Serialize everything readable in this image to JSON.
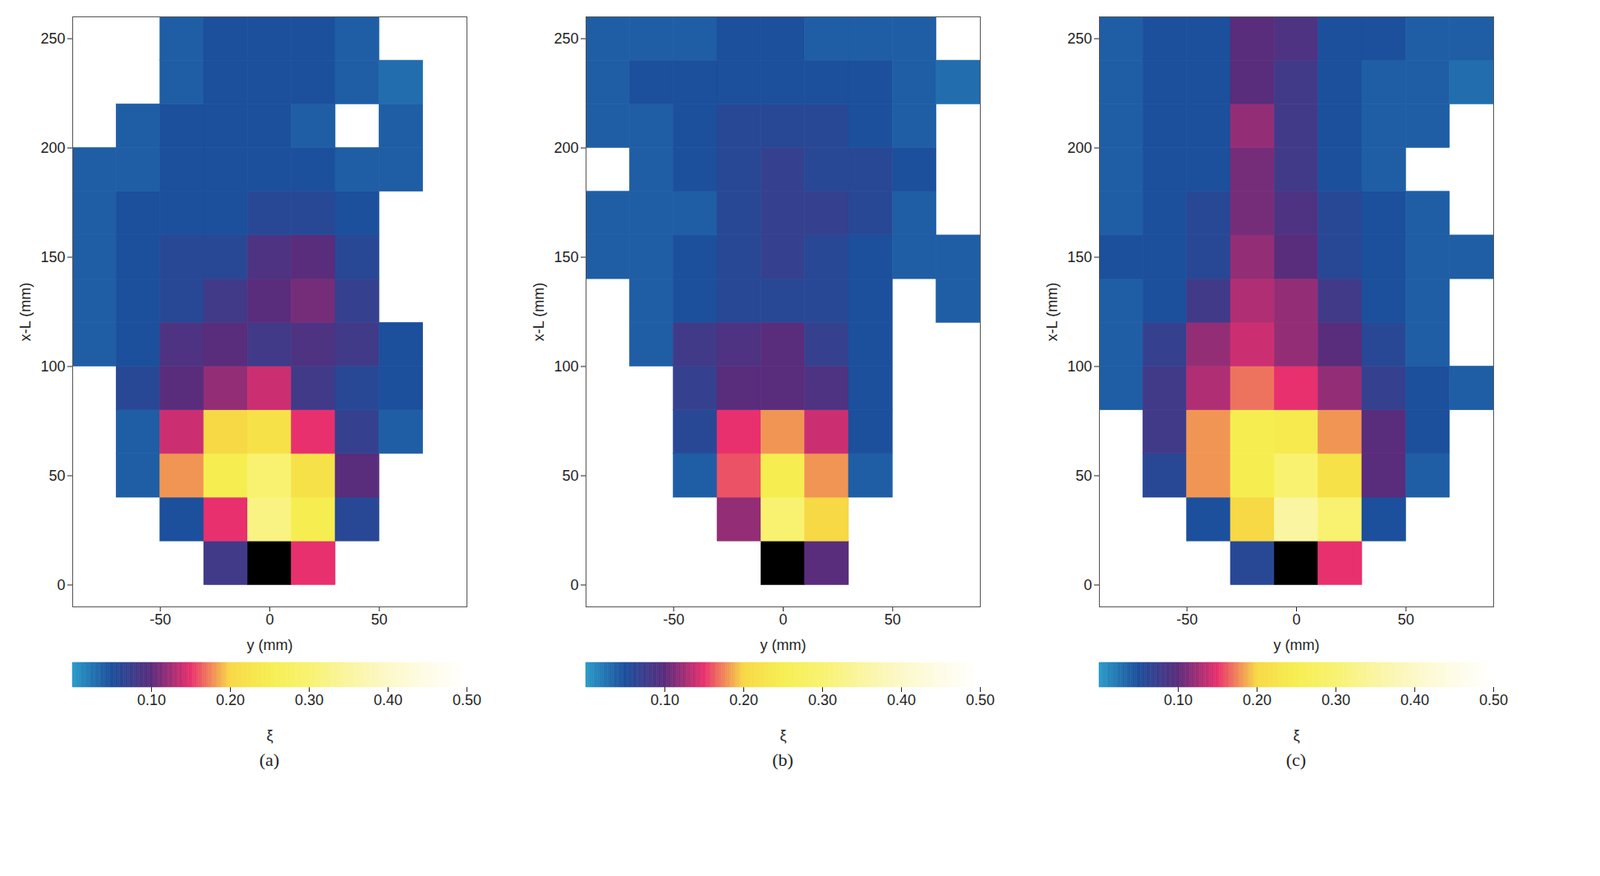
{
  "chart_data": [
    {
      "type": "heatmap",
      "panel": "(a)",
      "xlabel": "y (mm)",
      "ylabel": "x-L (mm)",
      "xlim": [
        -90,
        90
      ],
      "xticks": [
        -50,
        0,
        50
      ],
      "ylim": [
        -10,
        260
      ],
      "yticks": [
        0,
        50,
        100,
        150,
        200,
        250
      ],
      "cells": {
        "column_centers": [
          -80,
          -60,
          -40,
          -20,
          0,
          20,
          40,
          60,
          80
        ],
        "row_centers": [
          10,
          30,
          50,
          70,
          90,
          110,
          130,
          150,
          170,
          190,
          210,
          230,
          250
        ],
        "cell_size": 20,
        "values": [
          [
            null,
            null,
            null,
            0.08,
            0.6,
            0.15,
            null,
            null,
            null
          ],
          [
            null,
            null,
            0.05,
            0.15,
            0.32,
            0.25,
            0.06,
            null,
            null
          ],
          [
            null,
            0.04,
            0.18,
            0.25,
            0.3,
            0.22,
            0.1,
            null,
            null
          ],
          [
            null,
            0.04,
            0.14,
            0.2,
            0.22,
            0.15,
            0.07,
            0.04,
            null
          ],
          [
            null,
            0.06,
            0.1,
            0.12,
            0.14,
            0.08,
            0.06,
            0.05,
            null
          ],
          [
            0.04,
            0.05,
            0.09,
            0.1,
            0.08,
            0.09,
            0.08,
            0.05,
            null
          ],
          [
            0.04,
            0.05,
            0.06,
            0.08,
            0.1,
            0.11,
            0.07,
            null,
            null
          ],
          [
            0.04,
            0.05,
            0.06,
            0.06,
            0.09,
            0.1,
            0.06,
            null,
            null
          ],
          [
            0.04,
            0.05,
            0.05,
            0.05,
            0.06,
            0.06,
            0.05,
            null,
            null
          ],
          [
            0.04,
            0.04,
            0.05,
            0.05,
            0.05,
            0.05,
            0.04,
            0.04,
            null
          ],
          [
            null,
            0.04,
            0.05,
            0.05,
            0.05,
            0.04,
            null,
            0.04,
            null
          ],
          [
            null,
            null,
            0.04,
            0.05,
            0.05,
            0.05,
            0.04,
            0.03,
            null
          ],
          [
            null,
            null,
            0.04,
            0.05,
            0.05,
            0.05,
            0.04,
            null,
            null
          ]
        ]
      },
      "colorbar": {
        "label": "ξ",
        "range": [
          0,
          0.5
        ],
        "ticks": [
          {
            "value": 0.1,
            "label": "0.10"
          },
          {
            "value": 0.2,
            "label": "0.20"
          },
          {
            "value": 0.3,
            "label": "0.30"
          },
          {
            "value": 0.4,
            "label": "0.40"
          },
          {
            "value": 0.5,
            "label": "0.50"
          }
        ],
        "colors": [
          "#2a9bc8",
          "#1c4f9c",
          "#5a2c7c",
          "#e8306e",
          "#f7d845",
          "#f6ee50",
          "#f8f270",
          "#faf5a0",
          "#fcf8c8",
          "#fefce6",
          "#ffffff"
        ]
      }
    },
    {
      "type": "heatmap",
      "panel": "(b)",
      "xlabel": "y (mm)",
      "ylabel": "x-L (mm)",
      "xlim": [
        -90,
        90
      ],
      "xticks": [
        -50,
        0,
        50
      ],
      "ylim": [
        -10,
        260
      ],
      "yticks": [
        0,
        50,
        100,
        150,
        200,
        250
      ],
      "cells": {
        "column_centers": [
          -80,
          -60,
          -40,
          -20,
          0,
          20,
          40,
          60,
          80
        ],
        "row_centers": [
          10,
          30,
          50,
          70,
          90,
          110,
          130,
          150,
          170,
          190,
          210,
          230,
          250
        ],
        "cell_size": 20,
        "values": [
          [
            null,
            null,
            null,
            null,
            0.6,
            0.1,
            null,
            null,
            null
          ],
          [
            null,
            null,
            null,
            0.12,
            0.3,
            0.2,
            null,
            null,
            null
          ],
          [
            null,
            null,
            0.04,
            0.16,
            0.25,
            0.18,
            0.04,
            null,
            null
          ],
          [
            null,
            null,
            0.06,
            0.15,
            0.18,
            0.14,
            0.05,
            null,
            null
          ],
          [
            null,
            null,
            0.07,
            0.1,
            0.1,
            0.09,
            0.05,
            null,
            null
          ],
          [
            null,
            0.04,
            0.08,
            0.09,
            0.1,
            0.07,
            0.05,
            null,
            null
          ],
          [
            null,
            0.04,
            0.05,
            0.06,
            0.06,
            0.06,
            0.05,
            null,
            0.04
          ],
          [
            0.04,
            0.04,
            0.05,
            0.06,
            0.07,
            0.06,
            0.05,
            0.04,
            0.04
          ],
          [
            0.04,
            0.04,
            0.04,
            0.06,
            0.07,
            0.07,
            0.06,
            0.04,
            null
          ],
          [
            null,
            0.04,
            0.05,
            0.06,
            0.07,
            0.06,
            0.06,
            0.05,
            null
          ],
          [
            0.04,
            0.04,
            0.05,
            0.06,
            0.06,
            0.06,
            0.05,
            0.04,
            null
          ],
          [
            0.04,
            0.05,
            0.05,
            0.05,
            0.05,
            0.05,
            0.05,
            0.04,
            0.03
          ],
          [
            0.04,
            0.04,
            0.04,
            0.05,
            0.05,
            0.04,
            0.04,
            0.04,
            null
          ]
        ]
      },
      "colorbar": {
        "label": "ξ",
        "range": [
          0,
          0.5
        ],
        "ticks": [
          {
            "value": 0.1,
            "label": "0.10"
          },
          {
            "value": 0.2,
            "label": "0.20"
          },
          {
            "value": 0.3,
            "label": "0.30"
          },
          {
            "value": 0.4,
            "label": "0.40"
          },
          {
            "value": 0.5,
            "label": "0.50"
          }
        ],
        "colors": [
          "#2a9bc8",
          "#1c4f9c",
          "#5a2c7c",
          "#e8306e",
          "#f7d845",
          "#f6ee50",
          "#f8f270",
          "#faf5a0",
          "#fcf8c8",
          "#fefce6",
          "#ffffff"
        ]
      }
    },
    {
      "type": "heatmap",
      "panel": "(c)",
      "xlabel": "y (mm)",
      "ylabel": "x-L (mm)",
      "xlim": [
        -90,
        90
      ],
      "xticks": [
        -50,
        0,
        50
      ],
      "ylim": [
        -10,
        260
      ],
      "yticks": [
        0,
        50,
        100,
        150,
        200,
        250
      ],
      "cells": {
        "column_centers": [
          -80,
          -60,
          -40,
          -20,
          0,
          20,
          40,
          60,
          80
        ],
        "row_centers": [
          10,
          30,
          50,
          70,
          90,
          110,
          130,
          150,
          170,
          190,
          210,
          230,
          250
        ],
        "cell_size": 20,
        "values": [
          [
            null,
            null,
            null,
            0.06,
            0.6,
            0.15,
            null,
            null,
            null
          ],
          [
            null,
            null,
            0.05,
            0.2,
            0.35,
            0.3,
            0.05,
            null,
            null
          ],
          [
            null,
            0.06,
            0.18,
            0.25,
            0.3,
            0.22,
            0.1,
            0.04,
            null
          ],
          [
            null,
            0.08,
            0.18,
            0.25,
            0.24,
            0.18,
            0.1,
            0.05,
            null
          ],
          [
            0.04,
            0.08,
            0.13,
            0.17,
            0.15,
            0.12,
            0.07,
            0.05,
            0.04
          ],
          [
            0.04,
            0.07,
            0.12,
            0.14,
            0.12,
            0.1,
            0.06,
            0.04,
            null
          ],
          [
            0.04,
            0.05,
            0.08,
            0.13,
            0.12,
            0.08,
            0.05,
            0.04,
            null
          ],
          [
            0.05,
            0.05,
            0.06,
            0.12,
            0.1,
            0.06,
            0.05,
            0.04,
            0.04
          ],
          [
            0.04,
            0.05,
            0.06,
            0.11,
            0.09,
            0.06,
            0.05,
            0.04,
            null
          ],
          [
            0.04,
            0.05,
            0.05,
            0.11,
            0.08,
            0.05,
            0.04,
            null,
            null
          ],
          [
            0.04,
            0.05,
            0.05,
            0.12,
            0.08,
            0.05,
            0.04,
            0.04,
            null
          ],
          [
            0.04,
            0.05,
            0.05,
            0.1,
            0.08,
            0.05,
            0.04,
            0.04,
            0.03
          ],
          [
            0.04,
            0.05,
            0.05,
            0.1,
            0.09,
            0.05,
            0.05,
            0.04,
            0.04
          ]
        ]
      },
      "colorbar": {
        "label": "ξ",
        "range": [
          0,
          0.5
        ],
        "ticks": [
          {
            "value": 0.1,
            "label": "0.10"
          },
          {
            "value": 0.2,
            "label": "0.20"
          },
          {
            "value": 0.3,
            "label": "0.30"
          },
          {
            "value": 0.4,
            "label": "0.40"
          },
          {
            "value": 0.5,
            "label": "0.50"
          }
        ],
        "colors": [
          "#2a9bc8",
          "#1c4f9c",
          "#5a2c7c",
          "#e8306e",
          "#f7d845",
          "#f6ee50",
          "#f8f270",
          "#faf5a0",
          "#fcf8c8",
          "#fefce6",
          "#ffffff"
        ]
      }
    }
  ]
}
